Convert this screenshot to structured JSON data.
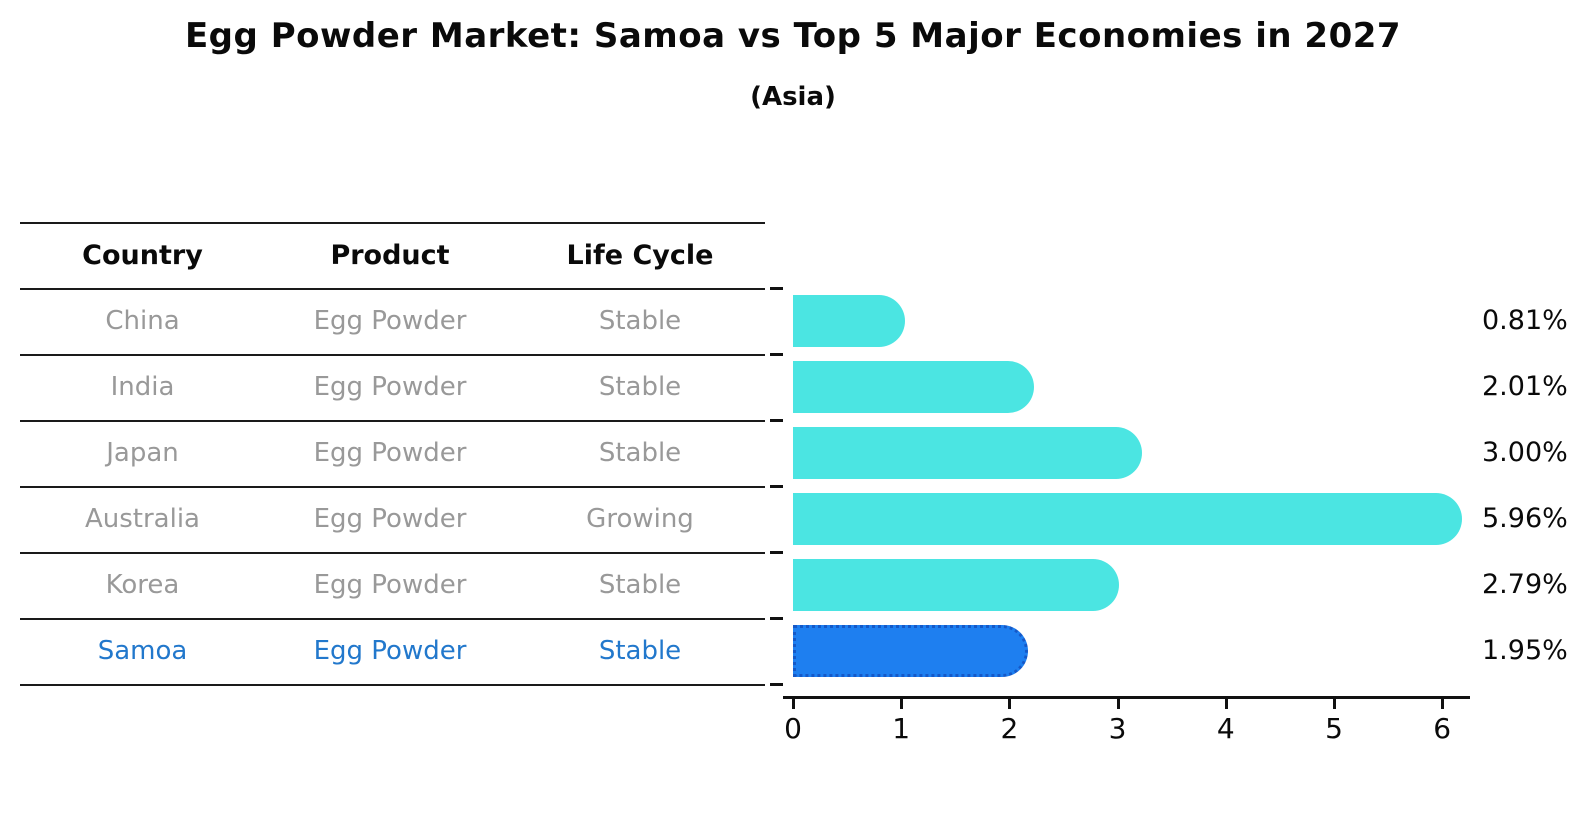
{
  "title": "Egg Powder Market: Samoa vs Top 5 Major Economies in 2027",
  "subtitle": "(Asia)",
  "table": {
    "headers": [
      "Country",
      "Product",
      "Life Cycle"
    ],
    "rows": [
      {
        "country": "China",
        "product": "Egg Powder",
        "life_cycle": "Stable",
        "highlighted": false
      },
      {
        "country": "India",
        "product": "Egg Powder",
        "life_cycle": "Stable",
        "highlighted": false
      },
      {
        "country": "Japan",
        "product": "Egg Powder",
        "life_cycle": "Stable",
        "highlighted": false
      },
      {
        "country": "Australia",
        "product": "Egg Powder",
        "life_cycle": "Growing",
        "highlighted": false
      },
      {
        "country": "Korea",
        "product": "Egg Powder",
        "life_cycle": "Stable",
        "highlighted": false
      },
      {
        "country": "Samoa",
        "product": "Egg Powder",
        "life_cycle": "Stable",
        "highlighted": true
      }
    ]
  },
  "chart_data": {
    "type": "bar",
    "orientation": "horizontal",
    "title": "Egg Powder Market: Samoa vs Top 5 Major Economies in 2027",
    "subtitle": "(Asia)",
    "categories": [
      "China",
      "India",
      "Japan",
      "Australia",
      "Korea",
      "Samoa"
    ],
    "values": [
      0.81,
      2.01,
      3.0,
      5.96,
      2.79,
      1.95
    ],
    "value_labels": [
      "0.81%",
      "2.01%",
      "3.00%",
      "5.96%",
      "2.79%",
      "1.95%"
    ],
    "x_ticks": [
      0,
      1,
      2,
      3,
      4,
      5,
      6
    ],
    "xlim": [
      0,
      6.26
    ],
    "xlabel": "",
    "ylabel": "",
    "grid": false,
    "legend": false,
    "highlight_index": 5,
    "bar_color": "#4BE5E2",
    "highlight_color": "#1E7FF0",
    "highlight_border_color": "#1559C8"
  },
  "colors": {
    "bar": "#4BE5E2",
    "bar_highlight": "#1E7FF0",
    "bar_highlight_border": "#1559C8",
    "highlight_text": "#2278CC",
    "muted_text": "#999999",
    "table_line": "#1a1a1a",
    "axis": "#111111"
  }
}
